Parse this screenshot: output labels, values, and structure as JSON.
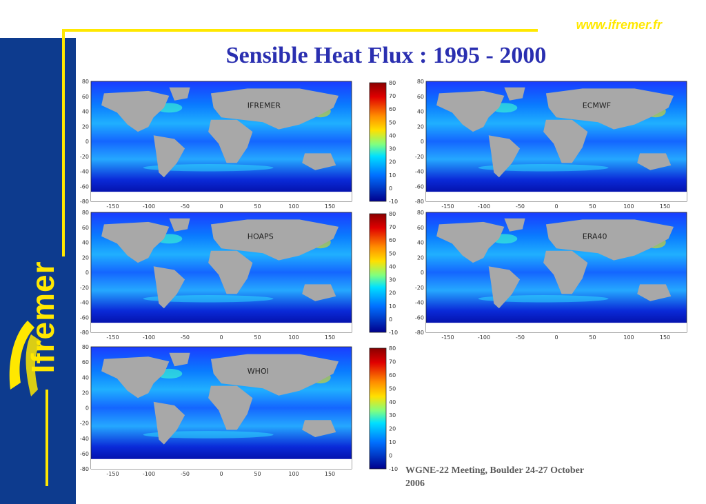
{
  "url": "www.ifremer.fr",
  "title": "Sensible Heat Flux : 1995 - 2000",
  "brand": "Ifremer",
  "footer_line1": "WGNE-22 Meeting, Boulder 24-27 October",
  "footer_line2": "2006",
  "map_labels": {
    "ifremer": "IFREMER",
    "ecmwf": "ECMWF",
    "hoaps": "HOAPS",
    "era40": "ERA40",
    "whoi": "WHOI"
  },
  "lat_ticks": [
    "80",
    "60",
    "40",
    "20",
    "0",
    "-20",
    "-40",
    "-60",
    "-80"
  ],
  "lon_ticks": [
    "-150",
    "-100",
    "-50",
    "0",
    "50",
    "100",
    "150"
  ],
  "colorbar_ticks": [
    "80",
    "70",
    "60",
    "50",
    "40",
    "30",
    "20",
    "10",
    "0",
    "-10"
  ],
  "colors": {
    "sidebar": "#0d3b8e",
    "accent": "#ffe800",
    "title": "#2a2fb0",
    "land": "#a8a8a8",
    "ocean_low": "#0000a0",
    "ocean_high": "#00c8ff"
  }
}
